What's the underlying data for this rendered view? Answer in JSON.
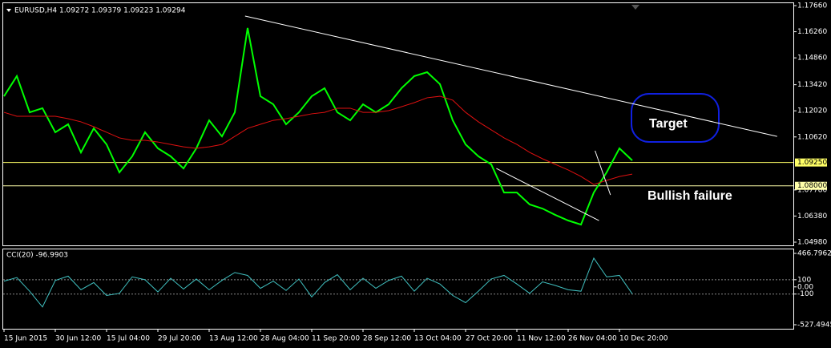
{
  "chart_data": [
    {
      "type": "line",
      "title": "EURUSD,H4 1.09272 1.09379 1.09223 1.09294",
      "categories": [
        "15 Jun 2015",
        null,
        null,
        null,
        "30 Jun 12:00",
        null,
        null,
        null,
        "15 Jul 04:00",
        null,
        null,
        null,
        "29 Jul 20:00",
        null,
        null,
        null,
        "13 Aug 12:00",
        null,
        null,
        null,
        "28 Aug 04:00",
        null,
        null,
        null,
        "11 Sep 20:00",
        null,
        null,
        null,
        "28 Sep 12:00",
        null,
        null,
        null,
        "13 Oct 04:00",
        null,
        null,
        null,
        "27 Oct 20:00",
        null,
        null,
        null,
        "11 Nov 12:00",
        null,
        null,
        null,
        "26 Nov 04:00",
        null,
        null,
        null,
        "10 Dec 20:00",
        null
      ],
      "series": [
        {
          "color": "#00ff00",
          "values": [
            1.128,
            1.1388,
            1.1194,
            1.1216,
            1.1087,
            1.113,
            1.0979,
            1.1108,
            1.1022,
            1.0872,
            1.0958,
            1.1087,
            1.1001,
            1.0958,
            1.0893,
            1.1001,
            1.1151,
            1.1065,
            1.1194,
            1.1646,
            1.128,
            1.1237,
            1.113,
            1.1194,
            1.128,
            1.1323,
            1.1194,
            1.1151,
            1.1237,
            1.1194,
            1.1237,
            1.1323,
            1.1388,
            1.1409,
            1.1345,
            1.1151,
            1.1022,
            1.0958,
            1.0915,
            1.0764,
            1.0764,
            1.07,
            1.0678,
            1.0644,
            1.0614,
            1.0592,
            1.0764,
            1.0872,
            1.1001,
            1.0936
          ]
        },
        {
          "color": "#e01010",
          "values": [
            1.1194,
            1.1173,
            1.1173,
            1.1173,
            1.1173,
            1.116,
            1.1143,
            1.1117,
            1.1087,
            1.1057,
            1.1044,
            1.1044,
            1.1035,
            1.1022,
            1.1009,
            1.1001,
            1.1009,
            1.1022,
            1.1065,
            1.1108,
            1.113,
            1.1151,
            1.116,
            1.1173,
            1.1186,
            1.1194,
            1.1216,
            1.1216,
            1.1194,
            1.1194,
            1.1203,
            1.1224,
            1.1246,
            1.1272,
            1.128,
            1.1259,
            1.1194,
            1.1143,
            1.11,
            1.1057,
            1.1022,
            1.0979,
            1.0945,
            1.0915,
            1.0885,
            1.085,
            1.0807,
            1.0829,
            1.085,
            1.0863
          ]
        }
      ],
      "ylim": [
        1.0498,
        1.1766
      ],
      "yticks": [
        {
          "value": 1.1766,
          "label": "1.17660"
        },
        {
          "value": 1.1626,
          "label": "1.16260"
        },
        {
          "value": 1.1486,
          "label": "1.14860"
        },
        {
          "value": 1.1342,
          "label": "1.13420"
        },
        {
          "value": 1.1202,
          "label": "1.12020"
        },
        {
          "value": 1.1062,
          "label": "1.10620"
        },
        {
          "value": 1.0778,
          "label": "1.07780"
        },
        {
          "value": 1.0638,
          "label": "1.06380"
        },
        {
          "value": 1.0498,
          "label": "1.04980"
        }
      ],
      "hlines": [
        {
          "value": 1.0925,
          "label": "1.09250",
          "color": "#ffff66"
        },
        {
          "value": 1.08,
          "label": "1.08000",
          "color": "#ffffaa"
        }
      ],
      "trendlines": [
        {
          "x": [
            18.8,
            60.3
          ],
          "y": [
            1.171,
            1.1065
          ],
          "color": "#ffffff"
        },
        {
          "x": [
            38.4,
            46.4
          ],
          "y": [
            1.0893,
            1.0614
          ],
          "color": "#ffffff"
        },
        {
          "x": [
            46.1,
            47.3
          ],
          "y": [
            1.0988,
            1.0751
          ],
          "color": "#ffffff"
        }
      ],
      "annotations": [
        "Target",
        "Bullish failure"
      ]
    },
    {
      "type": "line",
      "title": "CCI(20) -96.9903",
      "series": [
        {
          "color": "#40c0c0",
          "values": [
            80,
            130,
            -60,
            -280,
            90,
            150,
            -40,
            60,
            -120,
            -90,
            140,
            100,
            -70,
            120,
            -30,
            110,
            -40,
            90,
            200,
            160,
            -20,
            80,
            -50,
            110,
            -140,
            60,
            170,
            -40,
            120,
            -20,
            90,
            150,
            -60,
            120,
            40,
            -120,
            -220,
            -60,
            110,
            160,
            40,
            -90,
            70,
            20,
            -40,
            -60,
            400,
            140,
            160,
            -96.9903
          ]
        }
      ],
      "ylim": [
        -527.4945,
        466.7962
      ],
      "yticks": [
        466.7962,
        100,
        {
          "value": 0,
          "label": "0.00"
        },
        -100,
        -527.4945
      ],
      "levels": [
        100,
        -100
      ]
    }
  ]
}
